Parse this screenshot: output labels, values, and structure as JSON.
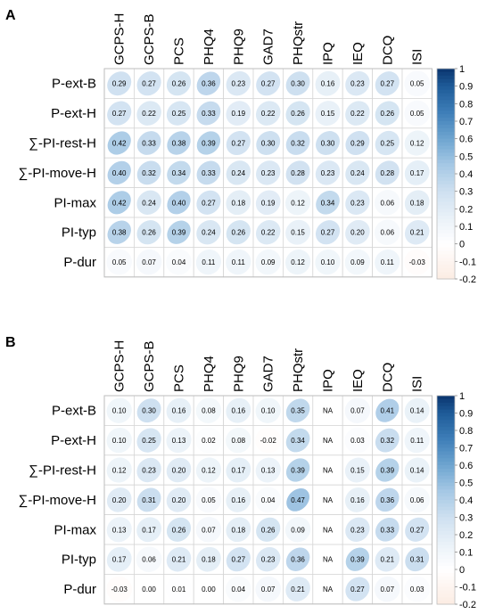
{
  "chart_data": [
    {
      "type": "heatmap",
      "panel_label": "A",
      "columns": [
        "GCPS-H",
        "GCPS-B",
        "PCS",
        "PHQ4",
        "PHQ9",
        "GAD7",
        "PHQstr",
        "IPQ",
        "IEQ",
        "DCQ",
        "ISI"
      ],
      "rows": [
        "P-ext-B",
        "P-ext-H",
        "∑-PI-rest-H",
        "∑-PI-move-H",
        "PI-max",
        "PI-typ",
        "P-dur"
      ],
      "values": [
        [
          0.29,
          0.27,
          0.26,
          0.36,
          0.23,
          0.27,
          0.3,
          0.16,
          0.23,
          0.27,
          0.05
        ],
        [
          0.27,
          0.22,
          0.25,
          0.33,
          0.19,
          0.22,
          0.26,
          0.15,
          0.22,
          0.26,
          0.05
        ],
        [
          0.42,
          0.33,
          0.38,
          0.39,
          0.27,
          0.3,
          0.32,
          0.3,
          0.29,
          0.25,
          0.12
        ],
        [
          0.4,
          0.32,
          0.34,
          0.33,
          0.24,
          0.23,
          0.28,
          0.23,
          0.24,
          0.28,
          0.17
        ],
        [
          0.42,
          0.24,
          0.4,
          0.27,
          0.18,
          0.19,
          0.12,
          0.34,
          0.23,
          0.06,
          0.18
        ],
        [
          0.38,
          0.26,
          0.39,
          0.24,
          0.26,
          0.22,
          0.15,
          0.27,
          0.2,
          0.06,
          0.21
        ],
        [
          0.05,
          0.07,
          0.04,
          0.11,
          0.11,
          0.09,
          0.12,
          0.1,
          0.09,
          0.11,
          -0.03
        ]
      ],
      "colorbar": {
        "ticks": [
          "1",
          "0.9",
          "0.8",
          "0.7",
          "0.6",
          "0.5",
          "0.4",
          "0.3",
          "0.2",
          "0.1",
          "0",
          "-0.1",
          "-0.2"
        ],
        "min": -0.2,
        "max": 1
      }
    },
    {
      "type": "heatmap",
      "panel_label": "B",
      "columns": [
        "GCPS-H",
        "GCPS-B",
        "PCS",
        "PHQ4",
        "PHQ9",
        "GAD7",
        "PHQstr",
        "IPQ",
        "IEQ",
        "DCQ",
        "ISI"
      ],
      "rows": [
        "P-ext-B",
        "P-ext-H",
        "∑-PI-rest-H",
        "∑-PI-move-H",
        "PI-max",
        "PI-typ",
        "P-dur"
      ],
      "values": [
        [
          0.1,
          0.3,
          0.16,
          0.08,
          0.16,
          0.1,
          0.35,
          null,
          0.07,
          0.41,
          0.14
        ],
        [
          0.1,
          0.25,
          0.13,
          0.02,
          0.08,
          -0.02,
          0.34,
          null,
          0.03,
          0.32,
          0.11
        ],
        [
          0.12,
          0.23,
          0.2,
          0.12,
          0.17,
          0.13,
          0.39,
          null,
          0.15,
          0.39,
          0.14
        ],
        [
          0.2,
          0.31,
          0.2,
          0.05,
          0.16,
          0.04,
          0.47,
          null,
          0.16,
          0.36,
          0.06
        ],
        [
          0.13,
          0.17,
          0.26,
          0.07,
          0.18,
          0.26,
          0.09,
          null,
          0.23,
          0.33,
          0.27
        ],
        [
          0.17,
          0.06,
          0.21,
          0.18,
          0.27,
          0.23,
          0.36,
          null,
          0.39,
          0.21,
          0.31
        ],
        [
          -0.03,
          0.0,
          0.01,
          0.0,
          0.04,
          0.07,
          0.21,
          null,
          0.27,
          0.07,
          0.03
        ]
      ],
      "na_label": "NA",
      "colorbar": {
        "ticks": [
          "1",
          "0.9",
          "0.8",
          "0.7",
          "0.6",
          "0.5",
          "0.4",
          "0.3",
          "0.2",
          "0.1",
          "0",
          "-0.1",
          "-0.2"
        ],
        "min": -0.2,
        "max": 1
      }
    }
  ]
}
